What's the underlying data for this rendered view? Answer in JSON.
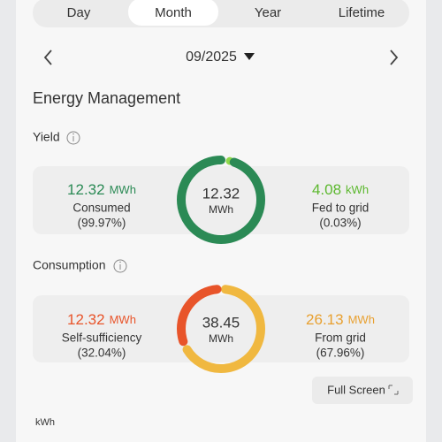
{
  "tabs": [
    "Day",
    "Month",
    "Year",
    "Lifetime"
  ],
  "date": "09/2025",
  "section_title": "Energy Management",
  "yield": {
    "title": "Yield",
    "total": {
      "value": 12.32,
      "unit": "MWh"
    },
    "consumed": {
      "value": 12.32,
      "unit": "MWh",
      "label": "Consumed",
      "share": {
        "value": 99.97,
        "label": "(99.97%)"
      }
    },
    "fed": {
      "value": 4.08,
      "unit": "kWh",
      "label": "Fed to grid",
      "share": {
        "value": 0.03,
        "label": "(0.03%)"
      }
    }
  },
  "consumption": {
    "title": "Consumption",
    "total": {
      "value": 38.45,
      "unit": "MWh"
    },
    "self": {
      "value": 12.32,
      "unit": "MWh",
      "label": "Self-sufficiency",
      "share": {
        "value": 32.04,
        "label": "(32.04%)"
      }
    },
    "grid": {
      "value": 26.13,
      "unit": "MWh",
      "label": "From grid",
      "share": {
        "value": 67.96,
        "label": "(67.96%)"
      }
    }
  },
  "full_screen": "Full Screen",
  "chart_unit": "kWh"
}
